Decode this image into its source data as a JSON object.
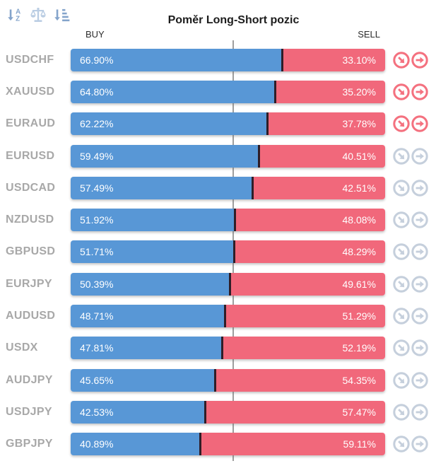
{
  "header": {
    "title": "Poměr Long-Short pozic",
    "buy_label": "BUY",
    "sell_label": "SELL"
  },
  "toolbar": {
    "icons": [
      {
        "name": "sort-alpha-icon"
      },
      {
        "name": "scales-icon"
      },
      {
        "name": "sort-amount-icon"
      }
    ]
  },
  "colors": {
    "buy_bar": "#5897D6",
    "sell_bar": "#F1687B",
    "bar_divider": "#2F1E28",
    "center_line": "#9E9E9E",
    "active_icon": "#F4717F",
    "inactive_icon": "#C5CFDC",
    "symbol_text": "#A8A8A8"
  },
  "chart_data": {
    "type": "bar",
    "orientation": "horizontal-diverging",
    "title": "Poměr Long-Short pozic",
    "categories": [
      "USDCHF",
      "XAUUSD",
      "EURAUD",
      "EURUSD",
      "USDCAD",
      "NZDUSD",
      "GBPUSD",
      "EURJPY",
      "AUDUSD",
      "USDX",
      "AUDJPY",
      "USDJPY",
      "GBPJPY"
    ],
    "series": [
      {
        "name": "BUY",
        "values": [
          66.9,
          64.8,
          62.22,
          59.49,
          57.49,
          51.92,
          51.71,
          50.39,
          48.71,
          47.81,
          45.65,
          42.53,
          40.89
        ]
      },
      {
        "name": "SELL",
        "values": [
          33.1,
          35.2,
          37.78,
          40.51,
          42.51,
          48.08,
          48.29,
          49.61,
          51.29,
          52.19,
          54.35,
          57.47,
          59.11
        ]
      }
    ],
    "xlim": [
      0,
      100
    ],
    "reference_line": 50,
    "legend_position": "top"
  },
  "rows": [
    {
      "symbol": "USDCHF",
      "buy": "66.90%",
      "sell": "33.10%",
      "buy_value": 66.9,
      "trend": "down"
    },
    {
      "symbol": "XAUUSD",
      "buy": "64.80%",
      "sell": "35.20%",
      "buy_value": 64.8,
      "trend": "down"
    },
    {
      "symbol": "EURAUD",
      "buy": "62.22%",
      "sell": "37.78%",
      "buy_value": 62.22,
      "trend": "down"
    },
    {
      "symbol": "EURUSD",
      "buy": "59.49%",
      "sell": "40.51%",
      "buy_value": 59.49,
      "trend": "flat"
    },
    {
      "symbol": "USDCAD",
      "buy": "57.49%",
      "sell": "42.51%",
      "buy_value": 57.49,
      "trend": "flat"
    },
    {
      "symbol": "NZDUSD",
      "buy": "51.92%",
      "sell": "48.08%",
      "buy_value": 51.92,
      "trend": "flat"
    },
    {
      "symbol": "GBPUSD",
      "buy": "51.71%",
      "sell": "48.29%",
      "buy_value": 51.71,
      "trend": "flat"
    },
    {
      "symbol": "EURJPY",
      "buy": "50.39%",
      "sell": "49.61%",
      "buy_value": 50.39,
      "trend": "flat"
    },
    {
      "symbol": "AUDUSD",
      "buy": "48.71%",
      "sell": "51.29%",
      "buy_value": 48.71,
      "trend": "flat"
    },
    {
      "symbol": "USDX",
      "buy": "47.81%",
      "sell": "52.19%",
      "buy_value": 47.81,
      "trend": "flat"
    },
    {
      "symbol": "AUDJPY",
      "buy": "45.65%",
      "sell": "54.35%",
      "buy_value": 45.65,
      "trend": "flat"
    },
    {
      "symbol": "USDJPY",
      "buy": "42.53%",
      "sell": "57.47%",
      "buy_value": 42.53,
      "trend": "flat"
    },
    {
      "symbol": "GBPJPY",
      "buy": "40.89%",
      "sell": "59.11%",
      "buy_value": 40.89,
      "trend": "flat"
    }
  ]
}
